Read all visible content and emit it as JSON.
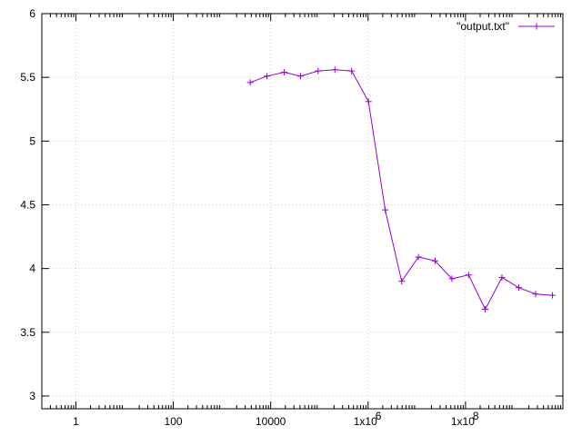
{
  "chart_data": {
    "type": "line",
    "title": "",
    "xlabel": "",
    "ylabel": "",
    "x_scale": "log10",
    "xlim": [
      0.2,
      10000000000.0
    ],
    "ylim": [
      2.9,
      6.0
    ],
    "grid": true,
    "legend_position": "top-right",
    "x_ticks": [
      {
        "value": 1,
        "label": "1"
      },
      {
        "value": 100,
        "label": "100"
      },
      {
        "value": 10000,
        "label": "10000"
      },
      {
        "value": 1000000,
        "label": "1x10",
        "exp": "6"
      },
      {
        "value": 100000000,
        "label": "1x10",
        "exp": "8"
      }
    ],
    "y_ticks": [
      {
        "value": 3,
        "label": "3"
      },
      {
        "value": 3.5,
        "label": "3.5"
      },
      {
        "value": 4,
        "label": "4"
      },
      {
        "value": 4.5,
        "label": "4.5"
      },
      {
        "value": 5,
        "label": "5"
      },
      {
        "value": 5.5,
        "label": "5.5"
      },
      {
        "value": 6,
        "label": "6"
      }
    ],
    "series": [
      {
        "name": "\"output.txt\"",
        "color": "#9400d3",
        "marker": "plus",
        "x": [
          3800.0,
          8400.0,
          19000.0,
          41000.0,
          94000.0,
          208000.0,
          460000.0,
          1020000.0,
          2250000.0,
          4900000.0,
          10800000.0,
          23800000.0,
          52600000.0,
          116000000.0,
          254000000.0,
          560000000.0,
          1240000000.0,
          2760000000.0,
          6100000000.0
        ],
        "y": [
          5.46,
          5.51,
          5.54,
          5.51,
          5.55,
          5.56,
          5.55,
          5.31,
          4.46,
          3.9,
          4.09,
          4.06,
          3.92,
          3.95,
          3.68,
          3.93,
          3.85,
          3.8,
          3.79
        ]
      }
    ]
  }
}
